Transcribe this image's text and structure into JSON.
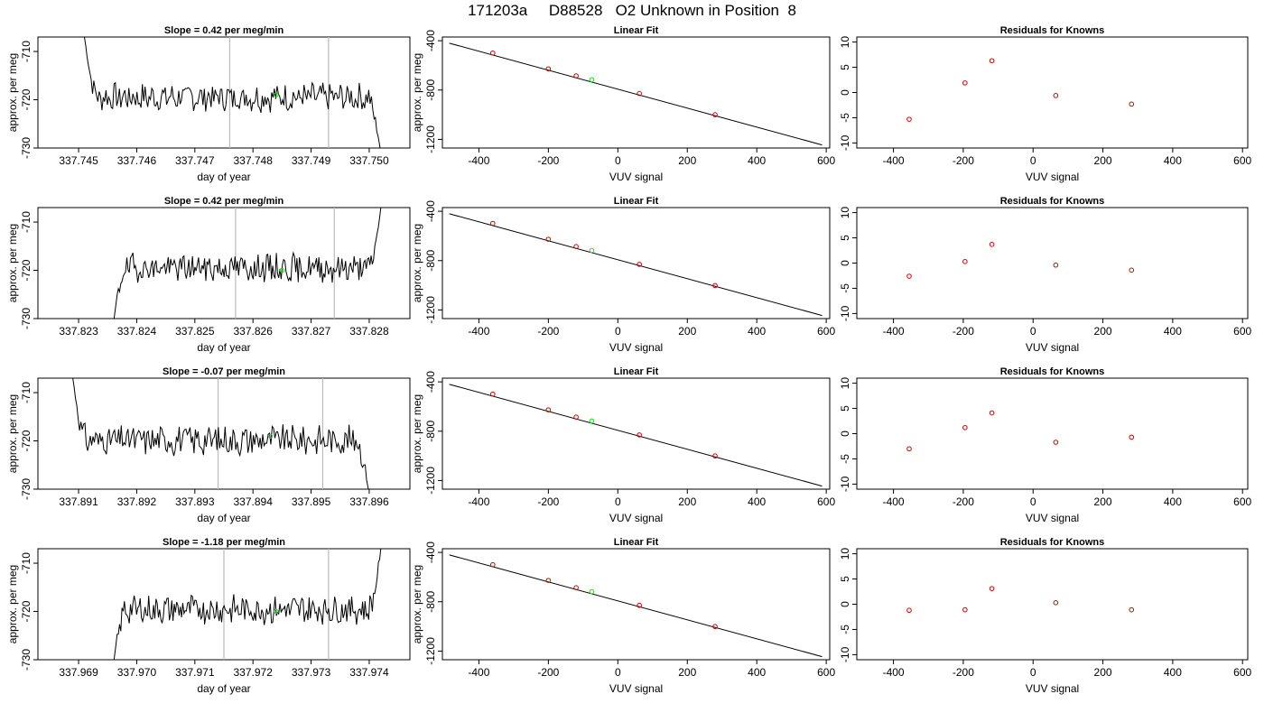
{
  "title": "171203a     D88528   O2 Unknown in Position  8",
  "colors": {
    "series": "#000000",
    "highlight": "#00ee00",
    "known": "#cc0000",
    "vline": "#bbbbbb"
  },
  "rows": [
    {
      "timeseries": {
        "title": "Slope =  0.42  per meg/min",
        "xlabel": "day of year",
        "ylabel": "approx. per meg",
        "xlim": [
          337.7443,
          337.7507
        ],
        "ylim": [
          -730,
          -707
        ],
        "xticks": [
          "337.745",
          "337.746",
          "337.747",
          "337.748",
          "337.749",
          "337.750"
        ],
        "xtick_values": [
          337.745,
          337.746,
          337.747,
          337.748,
          337.749,
          337.75
        ],
        "yticks": [
          "-730",
          "-720",
          "-710"
        ],
        "ytick_values": [
          -730,
          -720,
          -710
        ],
        "vlines": [
          337.7476,
          337.7493
        ],
        "highlight": {
          "x": 337.7484,
          "y": -719
        },
        "start": 337.7451,
        "end": 337.7502,
        "mean": -719.5,
        "amp": 2.6,
        "edge": "both",
        "seed": 7,
        "y_start": -707,
        "y_end": -731
      },
      "fit": {
        "title": "Linear Fit",
        "xlabel": "VUV signal",
        "ylabel": "approx. per meg",
        "xlim": [
          -505,
          610
        ],
        "ylim": [
          -1270,
          -370
        ],
        "xticks": [
          "-400",
          "-200",
          "0",
          "200",
          "400",
          "600"
        ],
        "xtick_values": [
          -400,
          -200,
          0,
          200,
          400,
          600
        ],
        "yticks": [
          "-1200",
          "-800",
          "-400"
        ],
        "ytick_values": [
          -1200,
          -800,
          -400
        ],
        "line": {
          "x": [
            -485,
            588
          ],
          "y": [
            -420,
            -1245
          ]
        },
        "knowns": [
          {
            "x": -360,
            "y": -500
          },
          {
            "x": -200,
            "y": -628
          },
          {
            "x": -120,
            "y": -685
          },
          {
            "x": 62,
            "y": -828
          },
          {
            "x": 280,
            "y": -1000
          }
        ],
        "unknown": {
          "x": -75,
          "y": -716
        }
      },
      "residuals": {
        "title": "Residuals for Knowns",
        "xlabel": "VUV signal",
        "xlim": [
          -505,
          615
        ],
        "ylim": [
          -11,
          11
        ],
        "xticks": [
          "-400",
          "-200",
          "0",
          "200",
          "400",
          "600"
        ],
        "xtick_values": [
          -400,
          -200,
          0,
          200,
          400,
          600
        ],
        "yticks": [
          "-10",
          "-5",
          "0",
          "5",
          "10"
        ],
        "ytick_values": [
          -10,
          -5,
          0,
          5,
          10
        ],
        "points": [
          {
            "x": -355,
            "y": -5.3
          },
          {
            "x": -195,
            "y": 1.9
          },
          {
            "x": -118,
            "y": 6.3
          },
          {
            "x": 65,
            "y": -0.6
          },
          {
            "x": 282,
            "y": -2.3
          }
        ]
      }
    },
    {
      "timeseries": {
        "title": "Slope =  0.42  per meg/min",
        "xlabel": "day of year",
        "ylabel": "approx. per meg",
        "xlim": [
          337.8223,
          337.8287
        ],
        "ylim": [
          -730,
          -707
        ],
        "xticks": [
          "337.823",
          "337.824",
          "337.825",
          "337.826",
          "337.827",
          "337.828"
        ],
        "xtick_values": [
          337.823,
          337.824,
          337.825,
          337.826,
          337.827,
          337.828
        ],
        "yticks": [
          "-730",
          "-720",
          "-710"
        ],
        "ytick_values": [
          -730,
          -720,
          -710
        ],
        "vlines": [
          337.8257,
          337.8274
        ],
        "highlight": {
          "x": 337.8265,
          "y": -720
        },
        "start": 337.8236,
        "end": 337.8282,
        "mean": -719.5,
        "amp": 2.6,
        "edge": "both",
        "seed": 19,
        "y_start": -731,
        "y_end": -707
      },
      "fit": {
        "title": "Linear Fit",
        "xlabel": "VUV signal",
        "ylabel": "approx. per meg",
        "xlim": [
          -505,
          610
        ],
        "ylim": [
          -1270,
          -370
        ],
        "xticks": [
          "-400",
          "-200",
          "0",
          "200",
          "400",
          "600"
        ],
        "xtick_values": [
          -400,
          -200,
          0,
          200,
          400,
          600
        ],
        "yticks": [
          "-1200",
          "-800",
          "-400"
        ],
        "ytick_values": [
          -1200,
          -800,
          -400
        ],
        "line": {
          "x": [
            -485,
            588
          ],
          "y": [
            -420,
            -1245
          ]
        },
        "knowns": [
          {
            "x": -360,
            "y": -498
          },
          {
            "x": -200,
            "y": -627
          },
          {
            "x": -120,
            "y": -686
          },
          {
            "x": 62,
            "y": -830
          },
          {
            "x": 280,
            "y": -1002
          }
        ],
        "unknown": {
          "x": -75,
          "y": -718
        }
      },
      "residuals": {
        "title": "Residuals for Knowns",
        "xlabel": "VUV signal",
        "xlim": [
          -505,
          615
        ],
        "ylim": [
          -11,
          11
        ],
        "xticks": [
          "-400",
          "-200",
          "0",
          "200",
          "400",
          "600"
        ],
        "xtick_values": [
          -400,
          -200,
          0,
          200,
          400,
          600
        ],
        "yticks": [
          "-10",
          "-5",
          "0",
          "5",
          "10"
        ],
        "ytick_values": [
          -10,
          -5,
          0,
          5,
          10
        ],
        "points": [
          {
            "x": -355,
            "y": -2.6
          },
          {
            "x": -195,
            "y": 0.3
          },
          {
            "x": -118,
            "y": 3.7
          },
          {
            "x": 65,
            "y": -0.4
          },
          {
            "x": 282,
            "y": -1.4
          }
        ]
      }
    },
    {
      "timeseries": {
        "title": "Slope =  -0.07  per meg/min",
        "xlabel": "day of year",
        "ylabel": "approx. per meg",
        "xlim": [
          337.8903,
          337.8967
        ],
        "ylim": [
          -730,
          -707
        ],
        "xticks": [
          "337.891",
          "337.892",
          "337.893",
          "337.894",
          "337.895",
          "337.896"
        ],
        "xtick_values": [
          337.891,
          337.892,
          337.893,
          337.894,
          337.895,
          337.896
        ],
        "yticks": [
          "-730",
          "-720",
          "-710"
        ],
        "ytick_values": [
          -730,
          -720,
          -710
        ],
        "vlines": [
          337.8934,
          337.8952
        ],
        "highlight": {
          "x": 337.8943,
          "y": -719
        },
        "start": 337.8909,
        "end": 337.896,
        "mean": -719.8,
        "amp": 2.8,
        "edge": "both",
        "seed": 31,
        "y_start": -707,
        "y_end": -731
      },
      "fit": {
        "title": "Linear Fit",
        "xlabel": "VUV signal",
        "ylabel": "approx. per meg",
        "xlim": [
          -505,
          610
        ],
        "ylim": [
          -1270,
          -370
        ],
        "xticks": [
          "-400",
          "-200",
          "0",
          "200",
          "400",
          "600"
        ],
        "xtick_values": [
          -400,
          -200,
          0,
          200,
          400,
          600
        ],
        "yticks": [
          "-1200",
          "-800",
          "-400"
        ],
        "ytick_values": [
          -1200,
          -800,
          -400
        ],
        "line": {
          "x": [
            -485,
            588
          ],
          "y": [
            -420,
            -1245
          ]
        },
        "knowns": [
          {
            "x": -360,
            "y": -499
          },
          {
            "x": -200,
            "y": -627
          },
          {
            "x": -120,
            "y": -686
          },
          {
            "x": 62,
            "y": -830
          },
          {
            "x": 280,
            "y": -1001
          }
        ],
        "unknown": {
          "x": -75,
          "y": -717
        }
      },
      "residuals": {
        "title": "Residuals for Knowns",
        "xlabel": "VUV signal",
        "xlim": [
          -505,
          615
        ],
        "ylim": [
          -11,
          11
        ],
        "xticks": [
          "-400",
          "-200",
          "0",
          "200",
          "400",
          "600"
        ],
        "xtick_values": [
          -400,
          -200,
          0,
          200,
          400,
          600
        ],
        "yticks": [
          "-10",
          "-5",
          "0",
          "5",
          "10"
        ],
        "ytick_values": [
          -10,
          -5,
          0,
          5,
          10
        ],
        "points": [
          {
            "x": -355,
            "y": -3.0
          },
          {
            "x": -195,
            "y": 1.2
          },
          {
            "x": -118,
            "y": 4.1
          },
          {
            "x": 65,
            "y": -1.7
          },
          {
            "x": 282,
            "y": -0.7
          }
        ]
      }
    },
    {
      "timeseries": {
        "title": "Slope =  -1.18  per meg/min",
        "xlabel": "day of year",
        "ylabel": "approx. per meg",
        "xlim": [
          337.9683,
          337.9747
        ],
        "ylim": [
          -730,
          -707
        ],
        "xticks": [
          "337.969",
          "337.970",
          "337.971",
          "337.972",
          "337.973",
          "337.974"
        ],
        "xtick_values": [
          337.969,
          337.97,
          337.971,
          337.972,
          337.973,
          337.974
        ],
        "yticks": [
          "-730",
          "-720",
          "-710"
        ],
        "ytick_values": [
          -730,
          -720,
          -710
        ],
        "vlines": [
          337.9715,
          337.9733
        ],
        "highlight": {
          "x": 337.9724,
          "y": -720
        },
        "start": 337.9696,
        "end": 337.9742,
        "mean": -719.6,
        "amp": 2.7,
        "edge": "both",
        "seed": 43,
        "y_start": -731,
        "y_end": -707
      },
      "fit": {
        "title": "Linear Fit",
        "xlabel": "VUV signal",
        "ylabel": "approx. per meg",
        "xlim": [
          -505,
          610
        ],
        "ylim": [
          -1270,
          -370
        ],
        "xticks": [
          "-400",
          "-200",
          "0",
          "200",
          "400",
          "600"
        ],
        "xtick_values": [
          -400,
          -200,
          0,
          200,
          400,
          600
        ],
        "yticks": [
          "-1200",
          "-800",
          "-400"
        ],
        "ytick_values": [
          -1200,
          -800,
          -400
        ],
        "line": {
          "x": [
            -485,
            588
          ],
          "y": [
            -420,
            -1245
          ]
        },
        "knowns": [
          {
            "x": -360,
            "y": -499
          },
          {
            "x": -200,
            "y": -627
          },
          {
            "x": -120,
            "y": -686
          },
          {
            "x": 62,
            "y": -829
          },
          {
            "x": 280,
            "y": -1001
          }
        ],
        "unknown": {
          "x": -75,
          "y": -718
        }
      },
      "residuals": {
        "title": "Residuals for Knowns",
        "xlabel": "VUV signal",
        "xlim": [
          -505,
          615
        ],
        "ylim": [
          -11,
          11
        ],
        "xticks": [
          "-400",
          "-200",
          "0",
          "200",
          "400",
          "600"
        ],
        "xtick_values": [
          -400,
          -200,
          0,
          200,
          400,
          600
        ],
        "yticks": [
          "-10",
          "-5",
          "0",
          "5",
          "10"
        ],
        "ytick_values": [
          -10,
          -5,
          0,
          5,
          10
        ],
        "points": [
          {
            "x": -355,
            "y": -1.2
          },
          {
            "x": -195,
            "y": -1.1
          },
          {
            "x": -118,
            "y": 3.1
          },
          {
            "x": 65,
            "y": 0.3
          },
          {
            "x": 282,
            "y": -1.1
          }
        ]
      }
    }
  ],
  "chart_data": [
    {
      "type": "line",
      "panel": "timeseries-1",
      "title": "Slope =  0.42  per meg/min",
      "xlabel": "day of year",
      "ylabel": "approx. per meg",
      "xlim": [
        337.7443,
        337.7507
      ],
      "ylim": [
        -730,
        -707
      ],
      "vertical_markers": [
        337.7476,
        337.7493
      ],
      "highlight_point": [
        337.7484,
        -719
      ],
      "typical_level": -719.5
    },
    {
      "type": "scatter",
      "panel": "fit-1",
      "title": "Linear Fit",
      "xlabel": "VUV signal",
      "ylabel": "approx. per meg",
      "x": [
        -360,
        -200,
        -120,
        62,
        280
      ],
      "y": [
        -500,
        -628,
        -685,
        -828,
        -1000
      ],
      "unknown": [
        -75,
        -716
      ]
    },
    {
      "type": "scatter",
      "panel": "residuals-1",
      "title": "Residuals for Knowns",
      "xlabel": "VUV signal",
      "x": [
        -355,
        -195,
        -118,
        65,
        282
      ],
      "y": [
        -5.3,
        1.9,
        6.3,
        -0.6,
        -2.3
      ]
    },
    {
      "type": "line",
      "panel": "timeseries-2",
      "title": "Slope =  0.42  per meg/min",
      "xlabel": "day of year",
      "ylabel": "approx. per meg",
      "xlim": [
        337.8223,
        337.8287
      ],
      "ylim": [
        -730,
        -707
      ],
      "vertical_markers": [
        337.8257,
        337.8274
      ],
      "highlight_point": [
        337.8265,
        -720
      ],
      "typical_level": -719.5
    },
    {
      "type": "scatter",
      "panel": "fit-2",
      "title": "Linear Fit",
      "x": [
        -360,
        -200,
        -120,
        62,
        280
      ],
      "y": [
        -498,
        -627,
        -686,
        -830,
        -1002
      ],
      "unknown": [
        -75,
        -718
      ]
    },
    {
      "type": "scatter",
      "panel": "residuals-2",
      "title": "Residuals for Knowns",
      "x": [
        -355,
        -195,
        -118,
        65,
        282
      ],
      "y": [
        -2.6,
        0.3,
        3.7,
        -0.4,
        -1.4
      ]
    },
    {
      "type": "line",
      "panel": "timeseries-3",
      "title": "Slope =  -0.07  per meg/min",
      "xlabel": "day of year",
      "ylabel": "approx. per meg",
      "xlim": [
        337.8903,
        337.8967
      ],
      "ylim": [
        -730,
        -707
      ],
      "vertical_markers": [
        337.8934,
        337.8952
      ],
      "highlight_point": [
        337.8943,
        -719
      ],
      "typical_level": -719.8
    },
    {
      "type": "scatter",
      "panel": "fit-3",
      "title": "Linear Fit",
      "x": [
        -360,
        -200,
        -120,
        62,
        280
      ],
      "y": [
        -499,
        -627,
        -686,
        -830,
        -1001
      ],
      "unknown": [
        -75,
        -717
      ]
    },
    {
      "type": "scatter",
      "panel": "residuals-3",
      "title": "Residuals for Knowns",
      "x": [
        -355,
        -195,
        -118,
        65,
        282
      ],
      "y": [
        -3.0,
        1.2,
        4.1,
        -1.7,
        -0.7
      ]
    },
    {
      "type": "line",
      "panel": "timeseries-4",
      "title": "Slope =  -1.18  per meg/min",
      "xlabel": "day of year",
      "ylabel": "approx. per meg",
      "xlim": [
        337.9683,
        337.9747
      ],
      "ylim": [
        -730,
        -707
      ],
      "vertical_markers": [
        337.9715,
        337.9733
      ],
      "highlight_point": [
        337.9724,
        -720
      ],
      "typical_level": -719.6
    },
    {
      "type": "scatter",
      "panel": "fit-4",
      "title": "Linear Fit",
      "x": [
        -360,
        -200,
        -120,
        62,
        280
      ],
      "y": [
        -499,
        -627,
        -686,
        -829,
        -1001
      ],
      "unknown": [
        -75,
        -718
      ]
    },
    {
      "type": "scatter",
      "panel": "residuals-4",
      "title": "Residuals for Knowns",
      "x": [
        -355,
        -195,
        -118,
        65,
        282
      ],
      "y": [
        -1.2,
        -1.1,
        3.1,
        0.3,
        -1.1
      ]
    }
  ]
}
